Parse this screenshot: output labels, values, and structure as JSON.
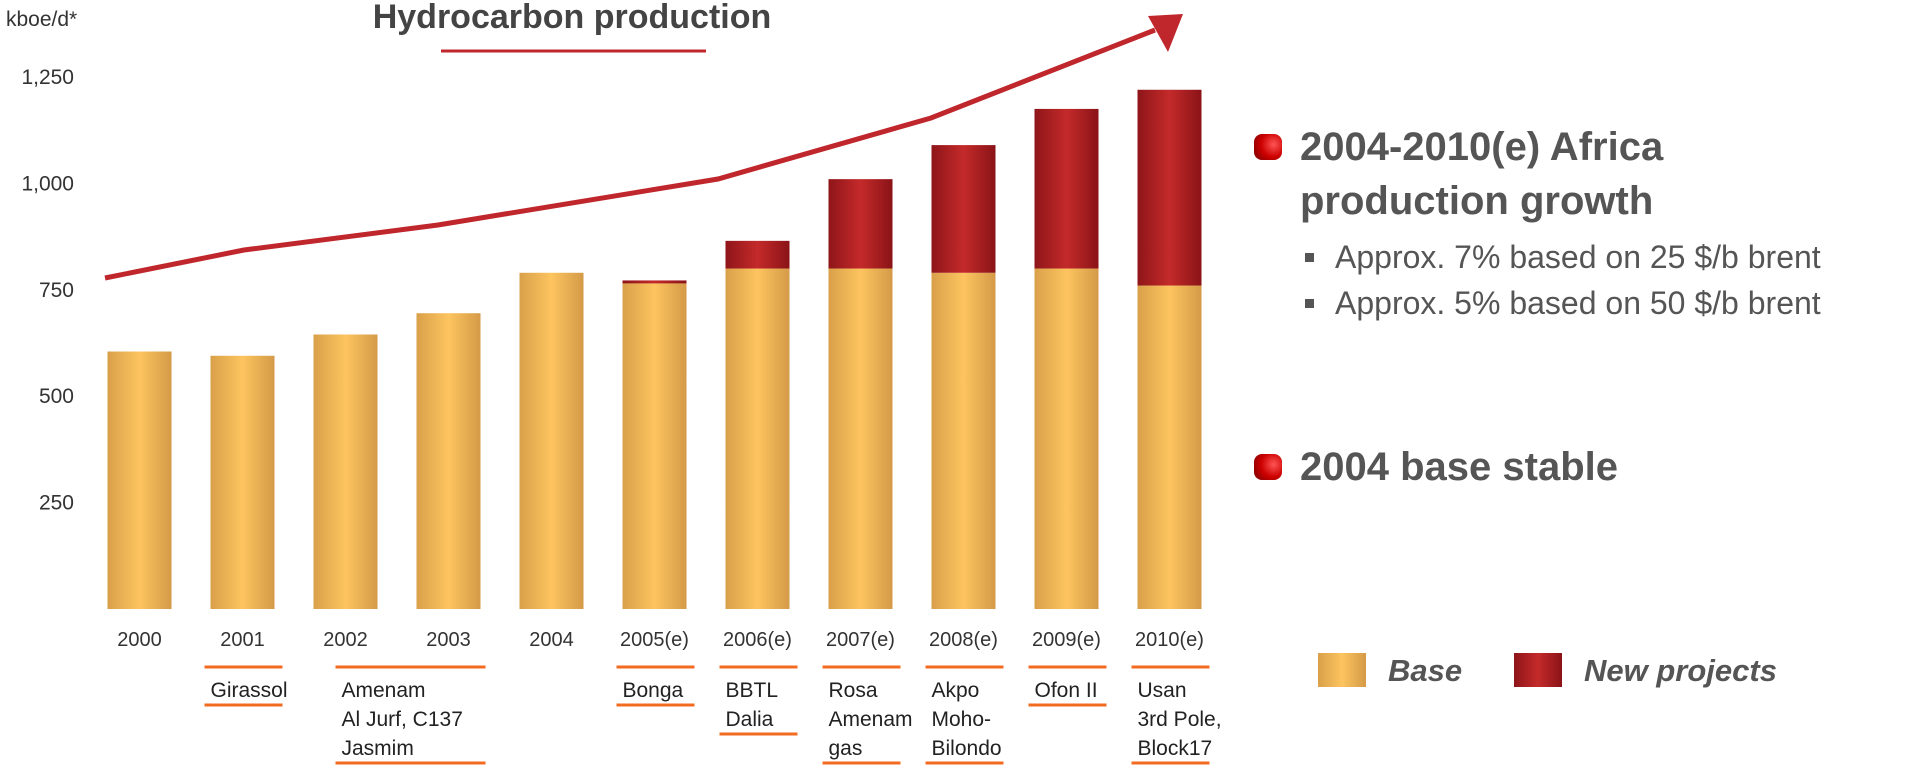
{
  "chart_data": {
    "type": "stacked_bar",
    "title": "Hydrocarbon production",
    "y_label": "kboe/d*",
    "categories": [
      "2000",
      "2001",
      "2002",
      "2003",
      "2004",
      "2005(e)",
      "2006(e)",
      "2007(e)",
      "2008(e)",
      "2009(e)",
      "2010(e)"
    ],
    "series": [
      {
        "name": "Base",
        "color": "#f0b24f",
        "values": [
          605,
          595,
          645,
          695,
          790,
          765,
          800,
          800,
          790,
          800,
          760
        ]
      },
      {
        "name": "New projects",
        "color": "#b01c22",
        "values": [
          0,
          0,
          0,
          0,
          0,
          7,
          65,
          210,
          300,
          375,
          460
        ]
      }
    ],
    "ylim": [
      0,
      1250
    ],
    "yticks": [
      250,
      500,
      750,
      {
        "value": 1000,
        "label": "1,000"
      },
      {
        "value": 1250,
        "label": "1,250"
      }
    ],
    "projects": [
      null,
      [
        "Girassol"
      ],
      [
        "Amenam",
        "Al Jurf, C137",
        "Jasmim"
      ],
      null,
      null,
      [
        "Bonga"
      ],
      [
        "BBTL",
        "Dalia"
      ],
      [
        "Rosa",
        "Amenam",
        "gas"
      ],
      [
        "Akpo",
        "Moho-",
        "Bilondo"
      ],
      [
        "Ofon II"
      ],
      [
        "Usan",
        "3rd Pole,",
        "Block17"
      ]
    ]
  },
  "bullets": [
    {
      "text": "2004-2010(e) Africa production growth",
      "sub": [
        "Approx. 7% based on 25 $/b brent",
        "Approx. 5% based on 50 $/b brent"
      ]
    },
    {
      "text": "2004 base stable"
    }
  ]
}
